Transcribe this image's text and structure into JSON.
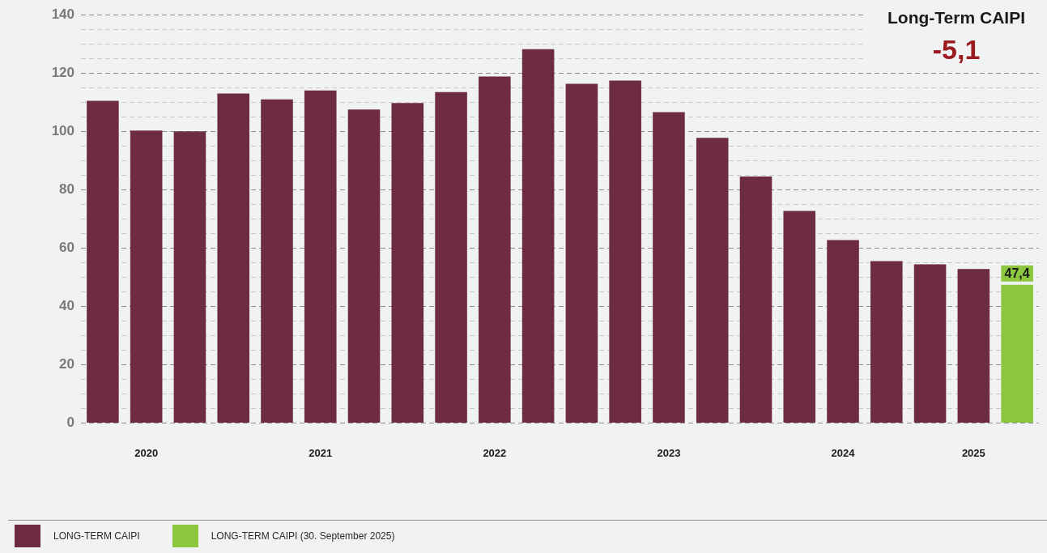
{
  "chart_data": {
    "type": "bar",
    "categories": [
      null,
      "2020",
      null,
      null,
      null,
      "2021",
      null,
      null,
      null,
      "2022",
      null,
      null,
      null,
      "2023",
      null,
      null,
      null,
      "2024",
      null,
      null,
      "2025",
      null
    ],
    "series": [
      {
        "name": "LONG-TERM CAIPI",
        "color": "#6e2c44",
        "values": [
          110.5,
          100.3,
          100,
          113,
          111,
          114,
          107.5,
          109.7,
          113.5,
          118.8,
          128.2,
          116.3,
          117.4,
          106.6,
          97.8,
          84.5,
          72.7,
          62.7,
          55.5,
          54.4,
          52.8,
          null
        ]
      },
      {
        "name": "LONG-TERM CAIPI (30. September 2025)",
        "color": "#8dc63f",
        "values": [
          null,
          null,
          null,
          null,
          null,
          null,
          null,
          null,
          null,
          null,
          null,
          null,
          null,
          null,
          null,
          null,
          null,
          null,
          null,
          null,
          null,
          47.4
        ],
        "value_labels": [
          null,
          null,
          null,
          null,
          null,
          null,
          null,
          null,
          null,
          null,
          null,
          null,
          null,
          null,
          null,
          null,
          null,
          null,
          null,
          null,
          null,
          "47,4"
        ]
      }
    ],
    "ylim": [
      0,
      140
    ],
    "yticks": [
      0,
      {
        "value": 5,
        "label": null
      },
      {
        "value": 10,
        "label": null
      },
      {
        "value": 15,
        "label": null
      },
      20,
      {
        "value": 25,
        "label": null
      },
      {
        "value": 30,
        "label": null
      },
      {
        "value": 35,
        "label": null
      },
      40,
      {
        "value": 45,
        "label": null
      },
      {
        "value": 50,
        "label": null
      },
      {
        "value": 55,
        "label": null
      },
      60,
      {
        "value": 65,
        "label": null
      },
      {
        "value": 70,
        "label": null
      },
      {
        "value": 75,
        "label": null
      },
      80,
      {
        "value": 85,
        "label": null
      },
      {
        "value": 90,
        "label": null
      },
      {
        "value": 95,
        "label": null
      },
      100,
      {
        "value": 105,
        "label": null
      },
      {
        "value": 110,
        "label": null
      },
      {
        "value": 115,
        "label": null
      },
      120,
      {
        "value": 125,
        "label": null
      },
      {
        "value": 130,
        "label": null
      },
      {
        "value": 135,
        "label": null
      },
      140
    ],
    "grid": "y",
    "legend": "bottom left",
    "annotations": [
      "Long-Term CAIPI",
      "-5,1"
    ]
  }
}
